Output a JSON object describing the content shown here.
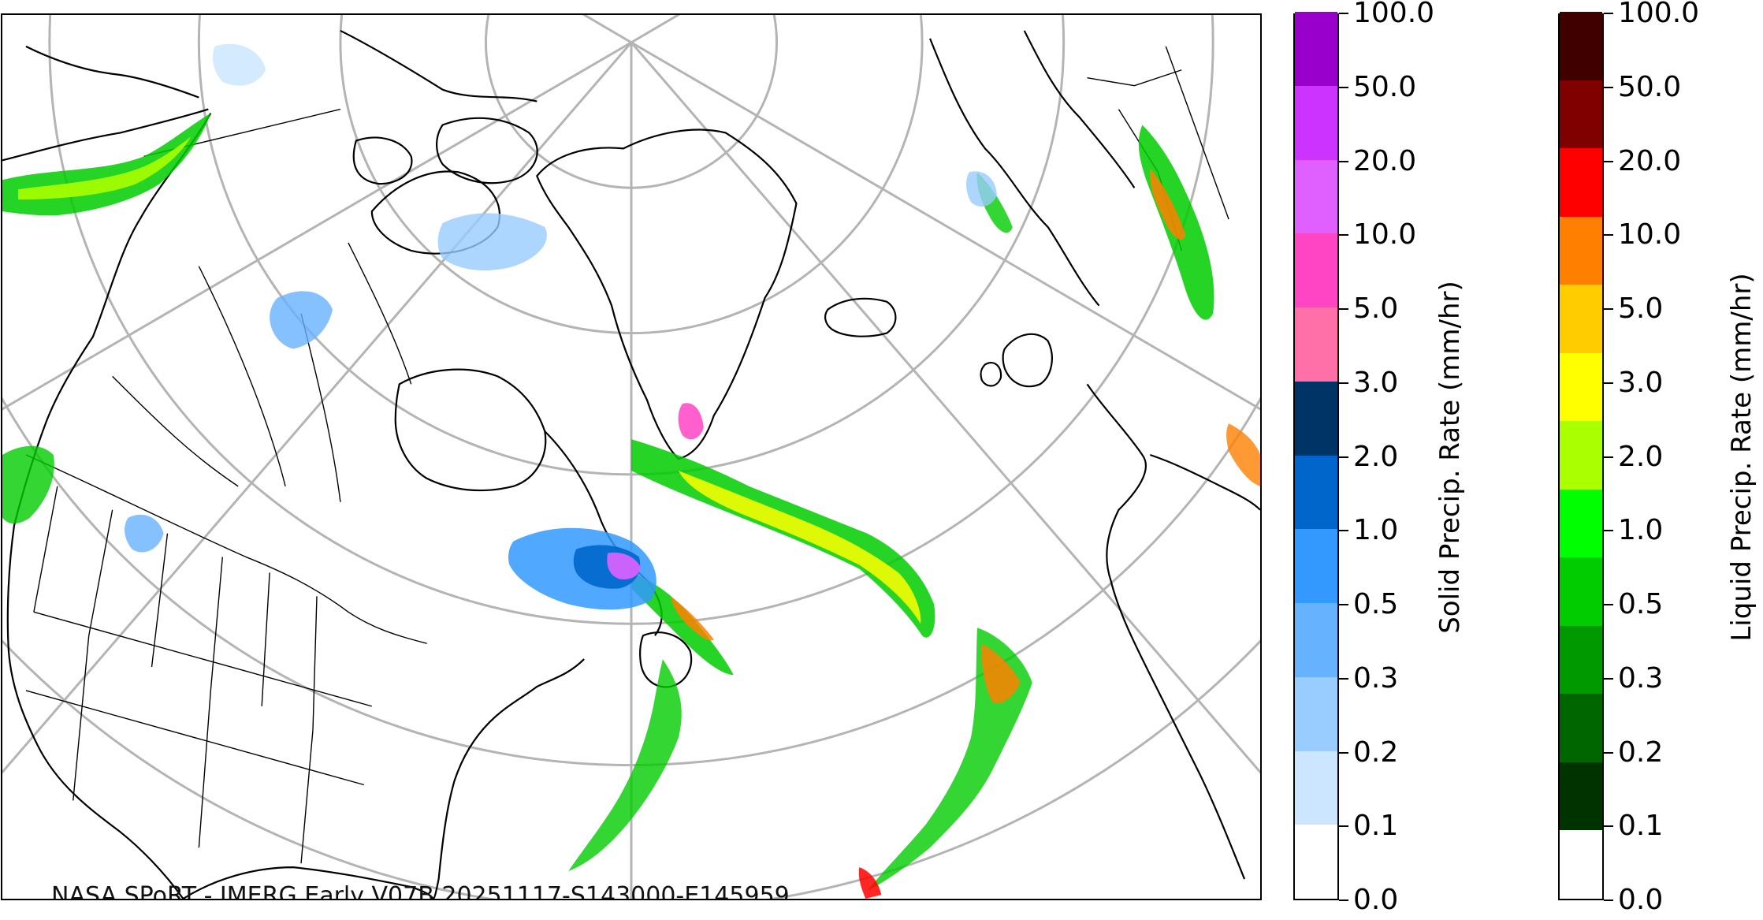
{
  "map": {
    "caption": "NASA SPoRT - IMERG Early V07B 20251117-S143000-E145959",
    "colors": {
      "coast": "#000000",
      "borders": "#000000",
      "graticule": "#b4b4b4",
      "background": "#ffffff"
    }
  },
  "colorbars": [
    {
      "id": "solid",
      "title": "Solid Precip. Rate (mm/hr)",
      "tick_labels": [
        "0.0",
        "0.1",
        "0.2",
        "0.3",
        "0.5",
        "1.0",
        "2.0",
        "3.0",
        "5.0",
        "10.0",
        "20.0",
        "50.0",
        "100.0"
      ],
      "colors": [
        "#ffffff",
        "#cce6ff",
        "#99ccff",
        "#66b2ff",
        "#3399ff",
        "#0066cc",
        "#003366",
        "#ff6fa8",
        "#ff44c4",
        "#e060ff",
        "#cc33ff",
        "#9900cc"
      ]
    },
    {
      "id": "liquid",
      "title": "Liquid Precip. Rate (mm/hr)",
      "tick_labels": [
        "0.0",
        "0.1",
        "0.2",
        "0.3",
        "0.5",
        "1.0",
        "2.0",
        "3.0",
        "5.0",
        "10.0",
        "20.0",
        "50.0",
        "100.0"
      ],
      "colors": [
        "#ffffff",
        "#003300",
        "#006600",
        "#009900",
        "#00cc00",
        "#00ff00",
        "#aaff00",
        "#ffff00",
        "#ffcc00",
        "#ff8000",
        "#ff0000",
        "#800000",
        "#400000"
      ]
    }
  ]
}
